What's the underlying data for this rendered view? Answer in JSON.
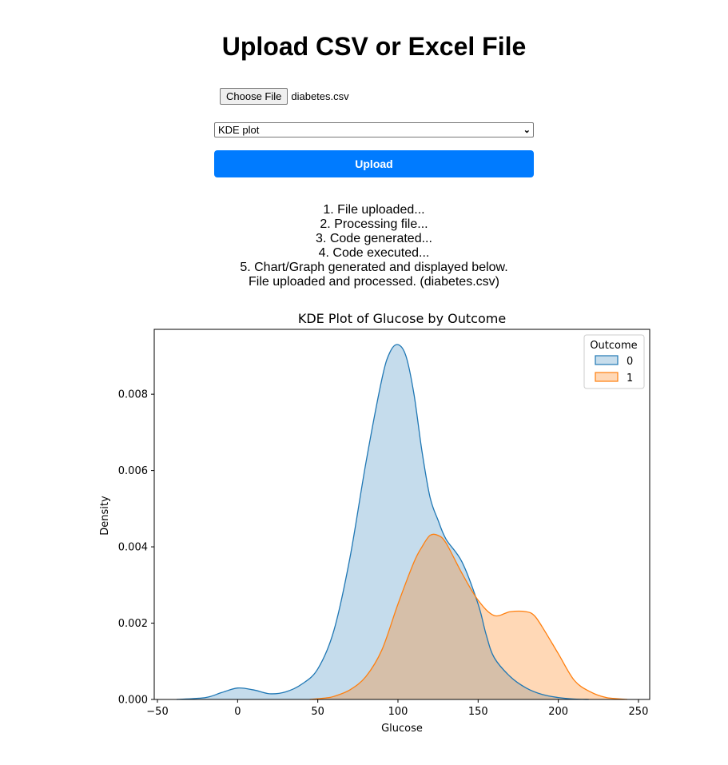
{
  "page": {
    "title": "Upload CSV or Excel File"
  },
  "form": {
    "choose_file_label": "Choose File",
    "file_name": "diabetes.csv",
    "chart_type_selected": "KDE plot",
    "upload_label": "Upload"
  },
  "status": {
    "lines": [
      "1. File uploaded...",
      "2. Processing file...",
      "3. Code generated...",
      "4. Code executed...",
      "5. Chart/Graph generated and displayed below.",
      "File uploaded and processed. (diabetes.csv)"
    ]
  },
  "colors": {
    "accent": "#007bff",
    "series0": "#1f77b4",
    "series1": "#ff7f0e"
  },
  "chart_data": {
    "type": "area",
    "title": "KDE Plot of Glucose by Outcome",
    "xlabel": "Glucose",
    "ylabel": "Density",
    "xlim": [
      -52,
      257
    ],
    "ylim": [
      0,
      0.0097
    ],
    "xticks": [
      "−50",
      "0",
      "50",
      "100",
      "150",
      "200",
      "250"
    ],
    "xtick_values": [
      -50,
      0,
      50,
      100,
      150,
      200,
      250
    ],
    "yticks": [
      "0.000",
      "0.002",
      "0.004",
      "0.006",
      "0.008"
    ],
    "ytick_values": [
      0,
      0.002,
      0.004,
      0.006,
      0.008
    ],
    "legend": {
      "title": "Outcome",
      "placement": "top-right"
    },
    "series": [
      {
        "name": "0",
        "x": [
          -38,
          -20,
          -10,
          0,
          10,
          20,
          30,
          40,
          50,
          60,
          70,
          80,
          90,
          95,
          100,
          105,
          110,
          115,
          120,
          125,
          130,
          140,
          150,
          155,
          160,
          170,
          180,
          190,
          200,
          210,
          219
        ],
        "y": [
          0,
          5e-05,
          0.00018,
          0.0003,
          0.00025,
          0.00015,
          0.0002,
          0.0004,
          0.0008,
          0.0018,
          0.0037,
          0.0062,
          0.0084,
          0.0091,
          0.0093,
          0.009,
          0.008,
          0.0065,
          0.0053,
          0.0047,
          0.0042,
          0.0036,
          0.0025,
          0.0017,
          0.0011,
          0.0006,
          0.0003,
          0.00013,
          5e-05,
          1e-05,
          0
        ]
      },
      {
        "name": "1",
        "x": [
          45,
          55,
          60,
          70,
          80,
          90,
          100,
          110,
          115,
          120,
          125,
          130,
          140,
          150,
          160,
          170,
          180,
          185,
          190,
          200,
          210,
          220,
          230,
          243
        ],
        "y": [
          0,
          4e-05,
          8e-05,
          0.00025,
          0.0006,
          0.0013,
          0.0025,
          0.0036,
          0.004,
          0.0043,
          0.0043,
          0.0041,
          0.0033,
          0.0026,
          0.0022,
          0.0023,
          0.0023,
          0.0022,
          0.0019,
          0.0012,
          0.0005,
          0.0002,
          5e-05,
          0
        ]
      }
    ]
  }
}
